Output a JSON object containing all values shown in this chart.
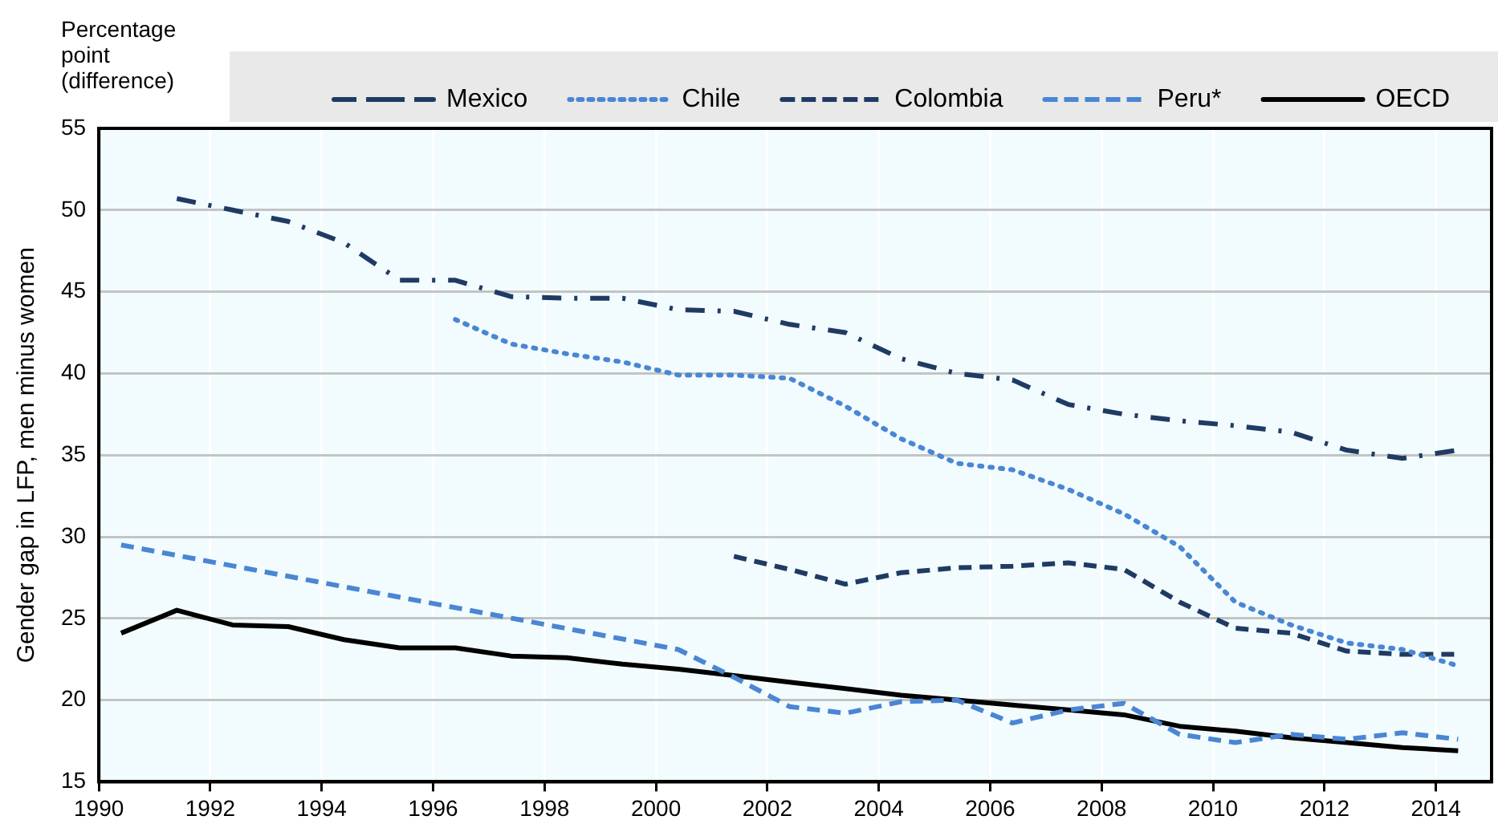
{
  "chart_data": {
    "type": "line",
    "ylabel": "Gender gap in LFP, men minus women",
    "annotations": [
      "Percentage point (difference)"
    ],
    "xlim": [
      1990,
      2015
    ],
    "xticks": [
      1990,
      1992,
      1994,
      1996,
      1998,
      2000,
      2002,
      2004,
      2006,
      2008,
      2010,
      2012,
      2014
    ],
    "ylim": [
      15,
      55
    ],
    "yticks": [
      15,
      20,
      25,
      30,
      35,
      40,
      45,
      50,
      55
    ],
    "grid": true,
    "legend": "top",
    "marker": "none",
    "series": [
      {
        "name": "Mexico",
        "color": "#1f3b63",
        "line_style": "dashdot",
        "x": [
          1991.4,
          1992.4,
          1993.4,
          1994.4,
          1995.4,
          1996.4,
          1997.4,
          1998.4,
          1999.4,
          2000.4,
          2001.4,
          2002.4,
          2003.4,
          2004.4,
          2005.4,
          2006.4,
          2007.4,
          2008.4,
          2009.4,
          2010.4,
          2011.4,
          2012.4,
          2013.4,
          2014.4
        ],
        "values": [
          50.7,
          50.0,
          49.3,
          48.0,
          45.7,
          45.7,
          44.7,
          44.6,
          44.6,
          43.9,
          43.8,
          43.0,
          42.5,
          40.9,
          40.0,
          39.6,
          38.1,
          37.5,
          37.1,
          36.8,
          36.4,
          35.3,
          34.8,
          35.3
        ]
      },
      {
        "name": "Chile",
        "color": "#4a86d4",
        "line_style": "dotted",
        "x": [
          1996.4,
          1997.4,
          1998.4,
          1999.4,
          2000.4,
          2001.4,
          2002.4,
          2003.4,
          2004.4,
          2005.4,
          2006.4,
          2007.4,
          2008.4,
          2009.4,
          2010.4,
          2011.4,
          2012.4,
          2013.4,
          2014.4
        ],
        "values": [
          43.3,
          41.8,
          41.2,
          40.7,
          39.9,
          39.9,
          39.7,
          38.0,
          36.0,
          34.5,
          34.1,
          32.9,
          31.4,
          29.4,
          26.0,
          24.6,
          23.5,
          23.1,
          22.1
        ]
      },
      {
        "name": "Colombia",
        "color": "#1f3b63",
        "line_style": "dashed",
        "x": [
          2001.4,
          2002.4,
          2003.4,
          2004.4,
          2005.4,
          2006.4,
          2007.4,
          2008.4,
          2009.4,
          2010.4,
          2011.4,
          2012.4,
          2013.4,
          2014.4
        ],
        "values": [
          28.8,
          28.0,
          27.1,
          27.8,
          28.1,
          28.2,
          28.4,
          28.0,
          26.0,
          24.4,
          24.1,
          23.0,
          22.8,
          22.8
        ]
      },
      {
        "name": "Peru*",
        "color": "#4a86d4",
        "line_style": "dashed",
        "x": [
          1990.4,
          2000.4,
          2001.4,
          2002.4,
          2003.4,
          2004.4,
          2005.4,
          2006.4,
          2007.4,
          2008.4,
          2009.4,
          2010.4,
          2011.4,
          2012.4,
          2013.4,
          2014.4
        ],
        "values": [
          29.5,
          23.1,
          21.4,
          19.6,
          19.2,
          19.9,
          20.0,
          18.6,
          19.4,
          19.8,
          17.9,
          17.4,
          17.9,
          17.6,
          18.0,
          17.6
        ]
      },
      {
        "name": "OECD",
        "color": "#000000",
        "line_style": "solid",
        "x": [
          1990.4,
          1991.4,
          1992.4,
          1993.4,
          1994.4,
          1995.4,
          1996.4,
          1997.4,
          1998.4,
          1999.4,
          2000.4,
          2001.4,
          2002.4,
          2003.4,
          2004.4,
          2005.4,
          2006.4,
          2007.4,
          2008.4,
          2009.4,
          2010.4,
          2011.4,
          2012.4,
          2013.4,
          2014.4
        ],
        "values": [
          24.1,
          25.5,
          24.6,
          24.5,
          23.7,
          23.2,
          23.2,
          22.7,
          22.6,
          22.2,
          21.9,
          21.5,
          21.1,
          20.7,
          20.3,
          20.0,
          19.7,
          19.4,
          19.1,
          18.4,
          18.1,
          17.7,
          17.4,
          17.1,
          16.9
        ]
      }
    ]
  }
}
